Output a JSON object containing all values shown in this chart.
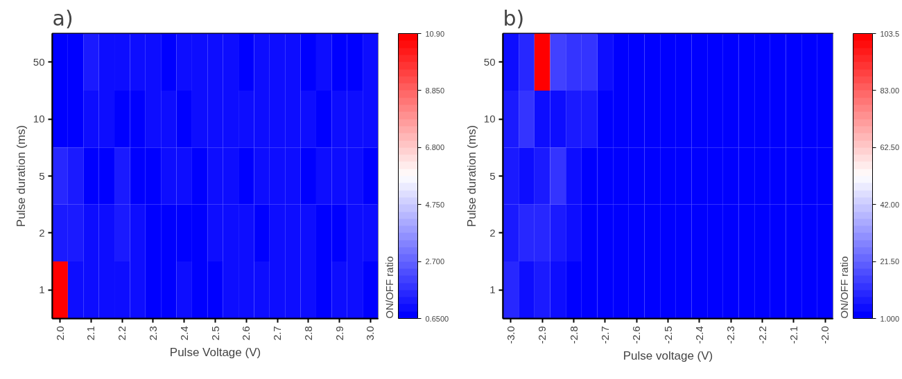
{
  "chart_data": [
    {
      "type": "heatmap",
      "title": "a)",
      "xlabel": "Pulse Voltage (V)",
      "ylabel": "Pulse duration (ms)",
      "clabel": "ON/OFF ratio",
      "x": [
        2.0,
        2.05,
        2.1,
        2.15,
        2.2,
        2.25,
        2.3,
        2.35,
        2.4,
        2.45,
        2.5,
        2.55,
        2.6,
        2.65,
        2.7,
        2.75,
        2.8,
        2.85,
        2.9,
        2.95,
        3.0
      ],
      "xlim": [
        1.975,
        3.025
      ],
      "xticks": [
        {
          "value": 2.0,
          "label": "2.0"
        },
        {
          "value": 2.1,
          "label": "2.1"
        },
        {
          "value": 2.2,
          "label": "2.2"
        },
        {
          "value": 2.3,
          "label": "2.3"
        },
        {
          "value": 2.4,
          "label": "2.4"
        },
        {
          "value": 2.5,
          "label": "2.5"
        },
        {
          "value": 2.6,
          "label": "2.6"
        },
        {
          "value": 2.7,
          "label": "2.7"
        },
        {
          "value": 2.8,
          "label": "2.8"
        },
        {
          "value": 2.9,
          "label": "2.9"
        },
        {
          "value": 3.0,
          "label": "3.0"
        }
      ],
      "y_categories": [
        "50",
        "10",
        "5",
        "2",
        "1"
      ],
      "cells": [
        [
          0.8,
          0.8,
          1.3,
          1.0,
          1.0,
          1.0,
          1.0,
          0.8,
          1.0,
          1.0,
          1.0,
          1.0,
          0.8,
          1.0,
          1.0,
          1.0,
          0.8,
          1.0,
          0.8,
          0.8,
          1.0
        ],
        [
          0.8,
          0.8,
          1.0,
          1.0,
          0.8,
          0.8,
          1.0,
          1.0,
          0.8,
          1.0,
          1.0,
          1.0,
          1.0,
          1.0,
          1.0,
          1.0,
          1.0,
          0.8,
          1.0,
          1.0,
          1.0
        ],
        [
          1.5,
          1.3,
          0.8,
          0.8,
          1.3,
          0.8,
          0.8,
          1.0,
          1.0,
          0.8,
          1.0,
          1.0,
          0.8,
          1.0,
          1.0,
          1.0,
          0.8,
          1.0,
          1.0,
          1.0,
          0.8
        ],
        [
          1.3,
          1.3,
          1.0,
          1.0,
          1.3,
          1.0,
          0.8,
          0.8,
          0.8,
          0.8,
          1.0,
          1.0,
          1.0,
          0.8,
          1.0,
          1.0,
          1.0,
          0.8,
          0.8,
          1.0,
          1.0
        ],
        [
          10.8,
          1.0,
          1.0,
          1.0,
          1.0,
          1.0,
          0.8,
          0.8,
          1.0,
          0.8,
          0.8,
          1.0,
          1.0,
          1.0,
          1.0,
          1.0,
          1.0,
          0.8,
          1.0,
          1.0,
          0.8
        ]
      ],
      "clim": [
        0.65,
        10.9
      ],
      "cticks": [
        {
          "value": 0.65,
          "label": "0.6500"
        },
        {
          "value": 2.7,
          "label": "2.700"
        },
        {
          "value": 4.75,
          "label": "4.750"
        },
        {
          "value": 6.8,
          "label": "6.800"
        },
        {
          "value": 8.85,
          "label": "8.850"
        },
        {
          "value": 10.9,
          "label": "10.90"
        }
      ]
    },
    {
      "type": "heatmap",
      "title": "b)",
      "xlabel": "Pulse voltage (V)",
      "ylabel": "Pulse duration (ms)",
      "clabel": "ON/OFF ratio",
      "x": [
        -3.0,
        -2.95,
        -2.9,
        -2.85,
        -2.8,
        -2.75,
        -2.7,
        -2.65,
        -2.6,
        -2.55,
        -2.5,
        -2.45,
        -2.4,
        -2.35,
        -2.3,
        -2.25,
        -2.2,
        -2.15,
        -2.1,
        -2.05,
        -2.0
      ],
      "xlim": [
        -3.025,
        -1.975
      ],
      "xticks": [
        {
          "value": -3.0,
          "label": "-3.0"
        },
        {
          "value": -2.9,
          "label": "-2.9"
        },
        {
          "value": -2.8,
          "label": "-2.8"
        },
        {
          "value": -2.7,
          "label": "-2.7"
        },
        {
          "value": -2.6,
          "label": "-2.6"
        },
        {
          "value": -2.5,
          "label": "-2.5"
        },
        {
          "value": -2.4,
          "label": "-2.4"
        },
        {
          "value": -2.3,
          "label": "-2.3"
        },
        {
          "value": -2.2,
          "label": "-2.2"
        },
        {
          "value": -2.1,
          "label": "-2.1"
        },
        {
          "value": -2.0,
          "label": "-2.0"
        }
      ],
      "y_categories": [
        "50",
        "10",
        "5",
        "2",
        "1"
      ],
      "cells": [
        [
          5,
          10,
          102,
          15,
          12,
          12,
          5,
          2,
          2,
          2,
          2,
          2,
          2,
          2,
          2,
          2,
          2,
          2,
          2,
          2,
          2
        ],
        [
          7,
          12,
          5,
          5,
          7,
          7,
          2,
          2,
          2,
          2,
          2,
          2,
          2,
          2,
          2,
          2,
          2,
          2,
          2,
          2,
          2
        ],
        [
          7,
          5,
          7,
          12,
          5,
          2,
          2,
          2,
          2,
          2,
          2,
          2,
          2,
          2,
          2,
          2,
          2,
          2,
          2,
          2,
          2
        ],
        [
          7,
          10,
          10,
          7,
          5,
          2,
          2,
          2,
          2,
          2,
          2,
          2,
          2,
          2,
          2,
          2,
          2,
          2,
          2,
          2,
          2
        ],
        [
          10,
          5,
          7,
          5,
          2,
          2,
          2,
          2,
          2,
          2,
          2,
          2,
          2,
          2,
          2,
          2,
          2,
          2,
          2,
          2,
          2
        ]
      ],
      "clim": [
        1.0,
        103.5
      ],
      "cticks": [
        {
          "value": 1.0,
          "label": "1.000"
        },
        {
          "value": 21.5,
          "label": "21.50"
        },
        {
          "value": 42.0,
          "label": "42.00"
        },
        {
          "value": 62.5,
          "label": "62.50"
        },
        {
          "value": 83.0,
          "label": "83.00"
        },
        {
          "value": 103.5,
          "label": "103.5"
        }
      ]
    }
  ]
}
